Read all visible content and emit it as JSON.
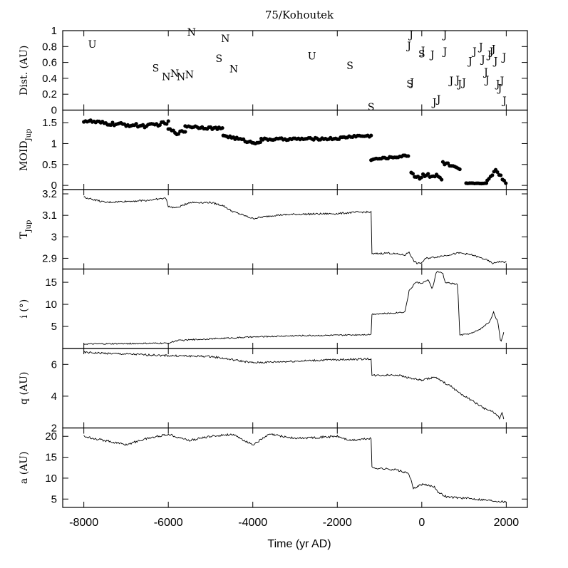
{
  "title": "75/Kohoutek",
  "xlabel": "Time (yr AD)",
  "chart_data": {
    "type": "line",
    "x_ticks": [
      -8000,
      -6000,
      -4000,
      -2000,
      0,
      2000
    ],
    "xlim": [
      -8500,
      2500
    ],
    "panels": [
      {
        "id": "dist",
        "type": "scatter",
        "ylabel": "Dist. (AU)",
        "ylabel_sub": "",
        "ylim": [
          0,
          1
        ],
        "yticks": [
          0,
          0.2,
          0.4,
          0.6,
          0.8,
          1
        ],
        "ytick_labels": [
          "0",
          "0.2",
          "0.4",
          "0.6",
          "0.8",
          "1"
        ],
        "letter_points": [
          {
            "x": -7800,
            "y": 0.83,
            "label": "U"
          },
          {
            "x": -6300,
            "y": 0.53,
            "label": "S"
          },
          {
            "x": -6050,
            "y": 0.42,
            "label": "N"
          },
          {
            "x": -5850,
            "y": 0.46,
            "label": "N"
          },
          {
            "x": -5700,
            "y": 0.42,
            "label": "N"
          },
          {
            "x": -5500,
            "y": 0.45,
            "label": "N"
          },
          {
            "x": -5450,
            "y": 0.98,
            "label": "N"
          },
          {
            "x": -4800,
            "y": 0.65,
            "label": "S"
          },
          {
            "x": -4650,
            "y": 0.9,
            "label": "N"
          },
          {
            "x": -4450,
            "y": 0.52,
            "label": "N"
          },
          {
            "x": -2600,
            "y": 0.68,
            "label": "U"
          },
          {
            "x": -1700,
            "y": 0.56,
            "label": "S"
          },
          {
            "x": -1200,
            "y": 0.04,
            "label": "S"
          },
          {
            "x": -300,
            "y": 0.81,
            "label": "J"
          },
          {
            "x": -250,
            "y": 0.95,
            "label": "J"
          },
          {
            "x": -280,
            "y": 0.33,
            "label": "S"
          },
          {
            "x": -230,
            "y": 0.35,
            "label": "J"
          },
          {
            "x": 0,
            "y": 0.71,
            "label": "S"
          },
          {
            "x": 30,
            "y": 0.75,
            "label": "J"
          },
          {
            "x": 250,
            "y": 0.7,
            "label": "J"
          },
          {
            "x": 300,
            "y": 0.1,
            "label": "J"
          },
          {
            "x": 400,
            "y": 0.14,
            "label": "J"
          },
          {
            "x": 550,
            "y": 0.74,
            "label": "J"
          },
          {
            "x": 550,
            "y": 0.95,
            "label": "J"
          },
          {
            "x": 700,
            "y": 0.37,
            "label": "J"
          },
          {
            "x": 850,
            "y": 0.38,
            "label": "J"
          },
          {
            "x": 900,
            "y": 0.33,
            "label": "J"
          },
          {
            "x": 1000,
            "y": 0.35,
            "label": "J"
          },
          {
            "x": 1150,
            "y": 0.62,
            "label": "J"
          },
          {
            "x": 1250,
            "y": 0.74,
            "label": "J"
          },
          {
            "x": 1400,
            "y": 0.8,
            "label": "J"
          },
          {
            "x": 1450,
            "y": 0.64,
            "label": "J"
          },
          {
            "x": 1520,
            "y": 0.48,
            "label": "J"
          },
          {
            "x": 1550,
            "y": 0.38,
            "label": "J"
          },
          {
            "x": 1600,
            "y": 0.7,
            "label": "J"
          },
          {
            "x": 1650,
            "y": 0.74,
            "label": "J"
          },
          {
            "x": 1700,
            "y": 0.77,
            "label": "J"
          },
          {
            "x": 1750,
            "y": 0.62,
            "label": "J"
          },
          {
            "x": 1800,
            "y": 0.33,
            "label": "J"
          },
          {
            "x": 1850,
            "y": 0.28,
            "label": "J"
          },
          {
            "x": 1900,
            "y": 0.37,
            "label": "J"
          },
          {
            "x": 1950,
            "y": 0.67,
            "label": "J"
          },
          {
            "x": 1960,
            "y": 0.12,
            "label": "J"
          }
        ]
      },
      {
        "id": "moid",
        "type": "scatter",
        "ylabel": "MOID",
        "ylabel_sub": "Jup",
        "ylim": [
          -0.1,
          1.8
        ],
        "yticks": [
          0,
          0.5,
          1,
          1.5
        ],
        "ytick_labels": [
          "0",
          "0.5",
          "1",
          "1.5"
        ],
        "segments": [
          {
            "x0": -8000,
            "x1": -6000,
            "base": [
              [
                -8000,
                1.55
              ],
              [
                -7500,
                1.48
              ],
              [
                -7000,
                1.45
              ],
              [
                -6500,
                1.42
              ],
              [
                -6000,
                1.5
              ]
            ],
            "amp": 0.04
          },
          {
            "x0": -6000,
            "x1": -5600,
            "base": [
              [
                -6000,
                1.35
              ],
              [
                -5800,
                1.25
              ],
              [
                -5600,
                1.3
              ]
            ],
            "amp": 0.03
          },
          {
            "x0": -5600,
            "x1": -4700,
            "base": [
              [
                -5600,
                1.42
              ],
              [
                -4700,
                1.35
              ]
            ],
            "amp": 0.03
          },
          {
            "x0": -4700,
            "x1": -3800,
            "base": [
              [
                -4700,
                1.2
              ],
              [
                -4300,
                1.1
              ],
              [
                -4000,
                1.02
              ],
              [
                -3800,
                1.05
              ]
            ],
            "amp": 0.03
          },
          {
            "x0": -3800,
            "x1": -1200,
            "base": [
              [
                -3800,
                1.1
              ],
              [
                -2000,
                1.12
              ],
              [
                -1600,
                1.18
              ],
              [
                -1200,
                1.18
              ]
            ],
            "amp": 0.025
          },
          {
            "x0": -1200,
            "x1": -300,
            "base": [
              [
                -1200,
                0.62
              ],
              [
                -600,
                0.68
              ],
              [
                -300,
                0.72
              ]
            ],
            "amp": 0.02
          },
          {
            "x0": -250,
            "x1": 500,
            "base": [
              [
                -250,
                0.3
              ],
              [
                -50,
                0.18
              ],
              [
                100,
                0.28
              ],
              [
                400,
                0.2
              ],
              [
                500,
                0.1
              ]
            ],
            "amp": 0.06
          },
          {
            "x0": 500,
            "x1": 900,
            "base": [
              [
                500,
                0.55
              ],
              [
                900,
                0.35
              ]
            ],
            "amp": 0.05
          },
          {
            "x0": 1050,
            "x1": 1550,
            "base": [
              [
                1050,
                0.05
              ],
              [
                1550,
                0.05
              ]
            ],
            "amp": 0.005
          },
          {
            "x0": 1550,
            "x1": 2000,
            "base": [
              [
                1550,
                0.1
              ],
              [
                1750,
                0.38
              ],
              [
                2000,
                0.05
              ]
            ],
            "amp": 0.03
          }
        ]
      },
      {
        "id": "tjup",
        "type": "line",
        "ylabel": "T",
        "ylabel_sub": "Jup",
        "ylim": [
          2.85,
          3.22
        ],
        "yticks": [
          2.9,
          3,
          3.1,
          3.2
        ],
        "ytick_labels": [
          "2.9",
          "3",
          "3.1",
          "3.2"
        ],
        "points": [
          [
            -8000,
            3.185
          ],
          [
            -7500,
            3.16
          ],
          [
            -7000,
            3.165
          ],
          [
            -6500,
            3.17
          ],
          [
            -6050,
            3.18
          ],
          [
            -6000,
            3.14
          ],
          [
            -5800,
            3.135
          ],
          [
            -5500,
            3.16
          ],
          [
            -5000,
            3.16
          ],
          [
            -4700,
            3.145
          ],
          [
            -4500,
            3.12
          ],
          [
            -4000,
            3.085
          ],
          [
            -3500,
            3.1
          ],
          [
            -3000,
            3.105
          ],
          [
            -2000,
            3.108
          ],
          [
            -1500,
            3.115
          ],
          [
            -1200,
            3.115
          ],
          [
            -1180,
            2.92
          ],
          [
            -800,
            2.925
          ],
          [
            -400,
            2.915
          ],
          [
            -300,
            2.93
          ],
          [
            -200,
            2.89
          ],
          [
            -100,
            2.875
          ],
          [
            0,
            2.88
          ],
          [
            100,
            2.9
          ],
          [
            300,
            2.905
          ],
          [
            600,
            2.915
          ],
          [
            900,
            2.925
          ],
          [
            1200,
            2.915
          ],
          [
            1500,
            2.895
          ],
          [
            1700,
            2.875
          ],
          [
            1800,
            2.885
          ],
          [
            2000,
            2.882
          ]
        ],
        "noise": 0.004
      },
      {
        "id": "incl",
        "type": "line",
        "ylabel": "i (°)",
        "ylabel_sub": "",
        "ylim": [
          0,
          18
        ],
        "yticks": [
          5,
          10,
          15
        ],
        "ytick_labels": [
          "5",
          "10",
          "15"
        ],
        "points": [
          [
            -8000,
            1
          ],
          [
            -6000,
            1.2
          ],
          [
            -5800,
            1.8
          ],
          [
            -5000,
            2.2
          ],
          [
            -4000,
            2.6
          ],
          [
            -3000,
            2.9
          ],
          [
            -2000,
            3
          ],
          [
            -1200,
            3.2
          ],
          [
            -1180,
            7.8
          ],
          [
            -700,
            8
          ],
          [
            -400,
            8.3
          ],
          [
            -300,
            13
          ],
          [
            -150,
            15
          ],
          [
            0,
            14.8
          ],
          [
            150,
            15.5
          ],
          [
            250,
            13.5
          ],
          [
            350,
            17.5
          ],
          [
            500,
            17
          ],
          [
            550,
            15
          ],
          [
            850,
            14.5
          ],
          [
            900,
            3
          ],
          [
            1200,
            3.5
          ],
          [
            1400,
            4.5
          ],
          [
            1600,
            6
          ],
          [
            1700,
            8.2
          ],
          [
            1800,
            6
          ],
          [
            1870,
            1.2
          ],
          [
            1950,
            4
          ]
        ],
        "noise": 0.15
      },
      {
        "id": "q",
        "type": "line",
        "ylabel": "q (AU)",
        "ylabel_sub": "",
        "ylim": [
          2,
          7
        ],
        "yticks": [
          2,
          4,
          6
        ],
        "ytick_labels": [
          "2",
          "4",
          "6"
        ],
        "points": [
          [
            -8000,
            6.75
          ],
          [
            -7000,
            6.65
          ],
          [
            -6000,
            6.55
          ],
          [
            -5000,
            6.5
          ],
          [
            -4500,
            6.3
          ],
          [
            -4000,
            6.1
          ],
          [
            -3000,
            6.2
          ],
          [
            -2000,
            6.3
          ],
          [
            -1200,
            6.35
          ],
          [
            -1180,
            5.3
          ],
          [
            -600,
            5.35
          ],
          [
            -200,
            5.1
          ],
          [
            0,
            5.0
          ],
          [
            300,
            5.2
          ],
          [
            500,
            4.9
          ],
          [
            700,
            4.6
          ],
          [
            900,
            4.2
          ],
          [
            1200,
            3.7
          ],
          [
            1500,
            3.2
          ],
          [
            1700,
            3.0
          ],
          [
            1850,
            2.6
          ],
          [
            1900,
            3.0
          ],
          [
            1950,
            2.4
          ]
        ],
        "noise": 0.06
      },
      {
        "id": "a",
        "type": "line",
        "ylabel": "a (AU)",
        "ylabel_sub": "",
        "ylim": [
          3,
          22
        ],
        "yticks": [
          5,
          10,
          15,
          20
        ],
        "ytick_labels": [
          "5",
          "10",
          "15",
          "20"
        ],
        "points": [
          [
            -8000,
            20
          ],
          [
            -7500,
            19
          ],
          [
            -7000,
            18
          ],
          [
            -6500,
            19.5
          ],
          [
            -6000,
            20.5
          ],
          [
            -5500,
            19
          ],
          [
            -5000,
            20
          ],
          [
            -4500,
            20.5
          ],
          [
            -4000,
            18
          ],
          [
            -3600,
            20.5
          ],
          [
            -3000,
            19.5
          ],
          [
            -2000,
            20
          ],
          [
            -1700,
            19
          ],
          [
            -1200,
            19.5
          ],
          [
            -1180,
            12.5
          ],
          [
            -600,
            12
          ],
          [
            -300,
            11
          ],
          [
            -200,
            7.5
          ],
          [
            0,
            8.5
          ],
          [
            300,
            8
          ],
          [
            400,
            6.5
          ],
          [
            600,
            5.5
          ],
          [
            900,
            5.3
          ],
          [
            1300,
            5
          ],
          [
            1600,
            4.7
          ],
          [
            1800,
            4.5
          ],
          [
            2000,
            4.3
          ]
        ],
        "noise": 0.25
      }
    ]
  }
}
